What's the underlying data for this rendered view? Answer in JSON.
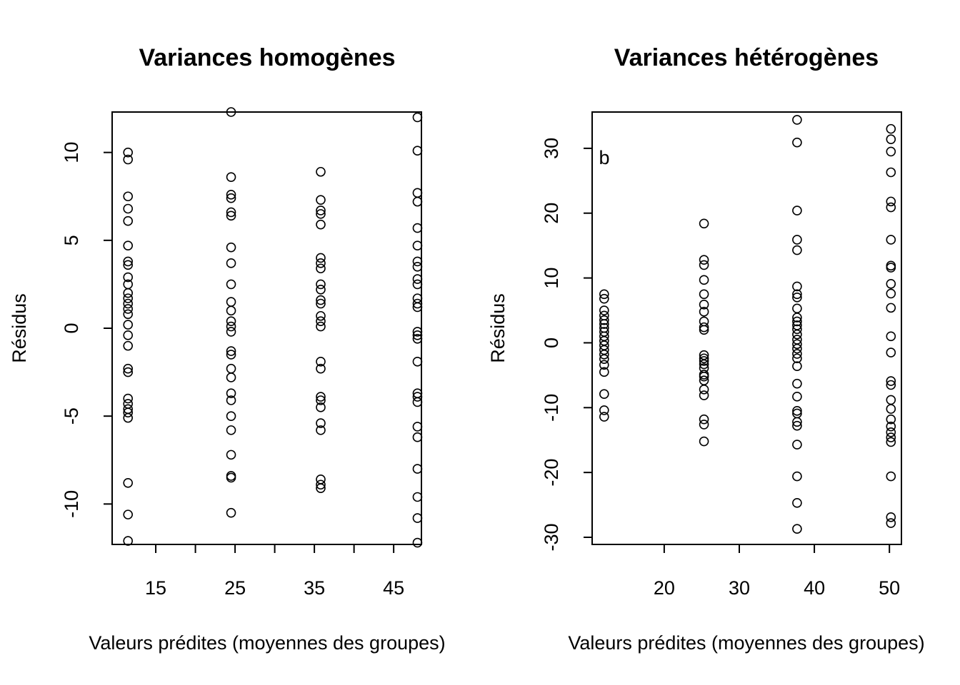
{
  "chart_data": [
    {
      "type": "scatter",
      "title": "Variances homogènes",
      "xlabel": "Valeurs prédites (moyennes des groupes)",
      "ylabel": "Résidus",
      "xlim": [
        9.5,
        48.5
      ],
      "ylim": [
        -12.3,
        12.3
      ],
      "x_ticks": [
        15,
        20,
        25,
        30,
        35,
        40,
        45
      ],
      "x_tick_labels": [
        "15",
        "",
        "25",
        "",
        "35",
        "",
        "45"
      ],
      "y_ticks": [
        -10,
        -5,
        0,
        5,
        10
      ],
      "y_tick_labels": [
        "-10",
        "-5",
        "0",
        "5",
        "10"
      ],
      "annotation": "",
      "series": [
        {
          "x": 11.5,
          "values": [
            10.0,
            9.6,
            7.5,
            6.8,
            6.1,
            4.7,
            3.8,
            3.6,
            2.9,
            2.5,
            2.0,
            1.7,
            1.4,
            1.1,
            0.8,
            0.2,
            -0.4,
            -1.0,
            -2.3,
            -2.5,
            -4.0,
            -4.3,
            -4.6,
            -4.8,
            -5.1,
            -8.8,
            -10.6,
            -12.1
          ]
        },
        {
          "x": 24.5,
          "values": [
            12.3,
            8.6,
            7.6,
            7.4,
            6.6,
            6.4,
            4.6,
            3.7,
            2.5,
            1.5,
            1.0,
            0.4,
            0.1,
            -0.2,
            -1.3,
            -1.5,
            -2.3,
            -2.8,
            -3.7,
            -4.1,
            -5.0,
            -5.8,
            -7.2,
            -8.4,
            -8.5,
            -10.5
          ]
        },
        {
          "x": 35.8,
          "values": [
            8.9,
            7.3,
            6.7,
            6.5,
            5.9,
            4.0,
            3.7,
            3.4,
            2.5,
            2.2,
            1.6,
            1.4,
            0.7,
            0.4,
            0.1,
            -1.9,
            -2.3,
            -3.9,
            -4.1,
            -4.5,
            -5.4,
            -5.8,
            -8.6,
            -8.9,
            -9.1
          ]
        },
        {
          "x": 48.0,
          "values": [
            12.0,
            10.1,
            7.7,
            7.2,
            5.7,
            4.7,
            3.8,
            3.5,
            2.8,
            2.5,
            1.7,
            1.4,
            1.2,
            -0.2,
            -0.4,
            -0.6,
            -1.9,
            -3.7,
            -3.9,
            -4.2,
            -5.6,
            -6.2,
            -8.0,
            -9.6,
            -10.8,
            -12.2
          ]
        }
      ]
    },
    {
      "type": "scatter",
      "title": "Variances hétérogènes",
      "xlabel": "Valeurs prédites (moyennes des groupes)",
      "ylabel": "Résidus",
      "xlim": [
        10.4,
        51.6
      ],
      "ylim": [
        -31.1,
        35.6
      ],
      "x_ticks": [
        20,
        30,
        40,
        50
      ],
      "x_tick_labels": [
        "20",
        "30",
        "40",
        "50"
      ],
      "y_ticks": [
        -30,
        -20,
        -10,
        0,
        10,
        20,
        30
      ],
      "y_tick_labels": [
        "-30",
        "-20",
        "-10",
        "0",
        "10",
        "20",
        "30"
      ],
      "annotation": "b",
      "series": [
        {
          "x": 12.0,
          "values": [
            7.5,
            6.8,
            5.0,
            4.2,
            3.5,
            2.9,
            2.3,
            1.7,
            1.0,
            0.3,
            -0.4,
            -1.1,
            -1.8,
            -2.5,
            -3.4,
            -4.5,
            -7.9,
            -10.4,
            -11.4
          ]
        },
        {
          "x": 25.3,
          "values": [
            18.4,
            12.8,
            12.0,
            9.7,
            7.5,
            5.9,
            4.8,
            3.3,
            2.4,
            2.0,
            -1.9,
            -2.4,
            -2.8,
            -3.3,
            -3.9,
            -4.9,
            -5.2,
            -5.8,
            -7.2,
            -8.1,
            -11.8,
            -12.6,
            -15.2
          ]
        },
        {
          "x": 37.7,
          "values": [
            34.4,
            30.9,
            20.4,
            15.9,
            14.3,
            8.7,
            7.5,
            7.0,
            5.3,
            3.9,
            3.3,
            2.7,
            2.1,
            1.3,
            0.5,
            -0.2,
            -0.9,
            -1.7,
            -2.4,
            -3.6,
            -6.3,
            -8.3,
            -10.5,
            -10.9,
            -12.2,
            -12.8,
            -15.7,
            -20.6,
            -24.7,
            -28.7
          ]
        },
        {
          "x": 50.2,
          "values": [
            33.0,
            31.4,
            29.5,
            26.3,
            21.8,
            20.9,
            15.9,
            11.9,
            11.6,
            9.1,
            7.6,
            5.4,
            1.0,
            -1.5,
            -5.9,
            -6.5,
            -8.8,
            -10.2,
            -11.8,
            -12.9,
            -13.8,
            -14.6,
            -15.3,
            -20.6,
            -26.9,
            -27.8
          ]
        }
      ]
    }
  ]
}
